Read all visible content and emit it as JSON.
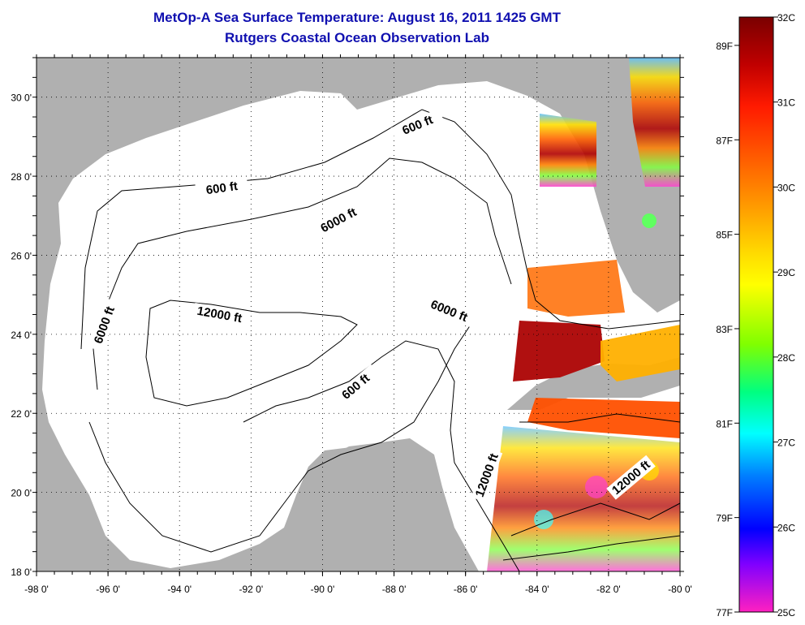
{
  "title": {
    "line1": "MetOp-A Sea Surface Temperature:  August 16, 2011 1425 GMT",
    "line2": "Rutgers Coastal Ocean Observation Lab"
  },
  "map": {
    "lon_range": [
      -98,
      -80
    ],
    "lat_range": [
      18,
      31
    ],
    "lon_ticks": [
      {
        "value": -98,
        "label": "-98 0'"
      },
      {
        "value": -96,
        "label": "-96 0'"
      },
      {
        "value": -94,
        "label": "-94 0'"
      },
      {
        "value": -92,
        "label": "-92 0'"
      },
      {
        "value": -90,
        "label": "-90 0'"
      },
      {
        "value": -88,
        "label": "-88 0'"
      },
      {
        "value": -86,
        "label": "-86 0'"
      },
      {
        "value": -84,
        "label": "-84 0'"
      },
      {
        "value": -82,
        "label": "-82 0'"
      },
      {
        "value": -80,
        "label": "-80 0'"
      }
    ],
    "lat_ticks": [
      {
        "value": 18,
        "label": "18 0'"
      },
      {
        "value": 20,
        "label": "20 0'"
      },
      {
        "value": 22,
        "label": "22 0'"
      },
      {
        "value": 24,
        "label": "24 0'"
      },
      {
        "value": 26,
        "label": "26 0'"
      },
      {
        "value": 28,
        "label": "28 0'"
      },
      {
        "value": 30,
        "label": "30 0'"
      }
    ],
    "grid": "dotted",
    "contour_labels": [
      {
        "text": "600 ft",
        "lon": -92.8,
        "lat": 27.6,
        "angle": -8
      },
      {
        "text": "600 ft",
        "lon": -87.3,
        "lat": 29.2,
        "angle": -22
      },
      {
        "text": "6000 ft",
        "lon": -89.5,
        "lat": 26.8,
        "angle": -28
      },
      {
        "text": "12000 ft",
        "lon": -92.9,
        "lat": 24.4,
        "angle": 10
      },
      {
        "text": "6000 ft",
        "lon": -96.0,
        "lat": 24.2,
        "angle": -70
      },
      {
        "text": "6000 ft",
        "lon": -86.5,
        "lat": 24.5,
        "angle": 22
      },
      {
        "text": "600 ft",
        "lon": -89.0,
        "lat": 22.6,
        "angle": -40
      },
      {
        "text": "12000 ft",
        "lon": -85.3,
        "lat": 20.4,
        "angle": -70
      },
      {
        "text": "12000 ft",
        "lon": -81.3,
        "lat": 20.3,
        "angle": -40
      }
    ],
    "colors": {
      "land": "#b0b0b0",
      "water": "#ffffff",
      "contour": "#000000"
    }
  },
  "colorbar": {
    "celsius_labels": [
      "32C",
      "31C",
      "30C",
      "29C",
      "28C",
      "27C",
      "26C",
      "25C"
    ],
    "fahrenheit_labels": [
      "89F",
      "87F",
      "85F",
      "83F",
      "81F",
      "79F",
      "77F"
    ],
    "range_c": [
      25,
      32
    ]
  }
}
